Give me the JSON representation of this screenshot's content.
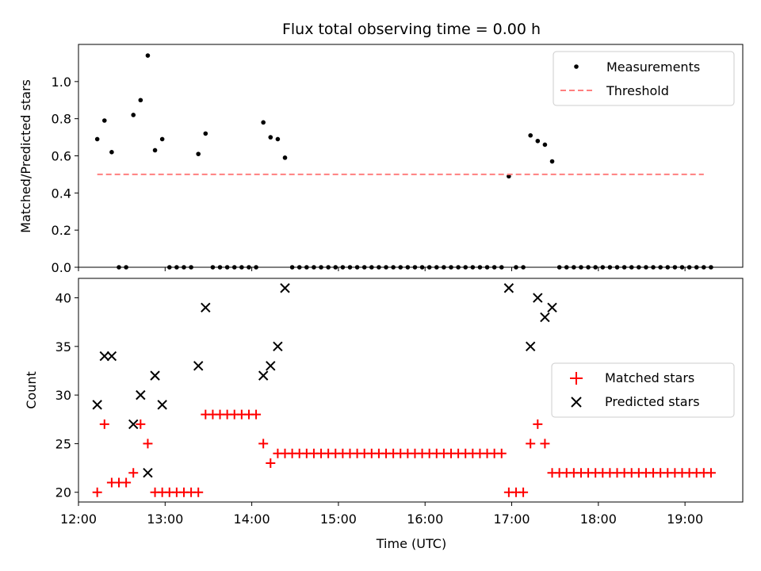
{
  "chart_data": [
    {
      "type": "scatter",
      "title": "Flux total observing time = 0.00 h",
      "xlabel": "",
      "ylabel": "Matched/Predicted stars",
      "xlim": [
        "12:00",
        "19:40"
      ],
      "ylim": [
        0,
        1.2
      ],
      "yticks": [
        0.0,
        0.2,
        0.4,
        0.6,
        0.8,
        1.0
      ],
      "xticks": [
        "12:00",
        "13:00",
        "14:00",
        "15:00",
        "16:00",
        "17:00",
        "18:00",
        "19:00"
      ],
      "grid": false,
      "legend": "top-right",
      "series": [
        {
          "name": "Measurements",
          "kind": "points",
          "color": "#000000",
          "x": [
            "12:13",
            "12:18",
            "12:23",
            "12:28",
            "12:33",
            "12:38",
            "12:43",
            "12:48",
            "12:53",
            "12:58",
            "13:03",
            "13:08",
            "13:13",
            "13:18",
            "13:23",
            "13:28",
            "13:33",
            "13:38",
            "13:43",
            "13:48",
            "13:53",
            "13:58",
            "14:03",
            "14:08",
            "14:13",
            "14:18",
            "14:23",
            "14:28",
            "14:33",
            "14:38",
            "14:43",
            "14:48",
            "14:53",
            "14:58",
            "15:03",
            "15:08",
            "15:13",
            "15:18",
            "15:23",
            "15:28",
            "15:33",
            "15:38",
            "15:43",
            "15:48",
            "15:53",
            "15:58",
            "16:03",
            "16:08",
            "16:13",
            "16:18",
            "16:23",
            "16:28",
            "16:33",
            "16:38",
            "16:43",
            "16:48",
            "16:53",
            "16:58",
            "17:03",
            "17:08",
            "17:13",
            "17:18",
            "17:23",
            "17:28",
            "17:33",
            "17:38",
            "17:43",
            "17:48",
            "17:53",
            "17:58",
            "18:03",
            "18:08",
            "18:13",
            "18:18",
            "18:23",
            "18:28",
            "18:33",
            "18:38",
            "18:43",
            "18:48",
            "18:53",
            "18:58",
            "19:03",
            "19:08",
            "19:13",
            "19:18"
          ],
          "y": [
            0.69,
            0.79,
            0.62,
            0.0,
            0.0,
            0.82,
            0.9,
            1.14,
            0.63,
            0.69,
            0.0,
            0.0,
            0.0,
            0.0,
            0.61,
            0.72,
            0.0,
            0.0,
            0.0,
            0.0,
            0.0,
            0.0,
            0.0,
            0.78,
            0.7,
            0.69,
            0.59,
            0.0,
            0.0,
            0.0,
            0.0,
            0.0,
            0.0,
            0.0,
            0.0,
            0.0,
            0.0,
            0.0,
            0.0,
            0.0,
            0.0,
            0.0,
            0.0,
            0.0,
            0.0,
            0.0,
            0.0,
            0.0,
            0.0,
            0.0,
            0.0,
            0.0,
            0.0,
            0.0,
            0.0,
            0.0,
            0.0,
            0.49,
            0.0,
            0.0,
            0.71,
            0.68,
            0.66,
            0.57,
            0.0,
            0.0,
            0.0,
            0.0,
            0.0,
            0.0,
            0.0,
            0.0,
            0.0,
            0.0,
            0.0,
            0.0,
            0.0,
            0.0,
            0.0,
            0.0,
            0.0,
            0.0,
            0.0,
            0.0,
            0.0,
            0.0
          ]
        },
        {
          "name": "Threshold",
          "kind": "dashed-line",
          "color": "#ff7f7f",
          "x": [
            "12:13",
            "19:13"
          ],
          "y": [
            0.5,
            0.5
          ]
        }
      ]
    },
    {
      "type": "scatter",
      "title": "",
      "xlabel": "Time (UTC)",
      "ylabel": "Count",
      "xlim": [
        "12:00",
        "19:40"
      ],
      "ylim": [
        19,
        42
      ],
      "yticks": [
        20,
        25,
        30,
        35,
        40
      ],
      "xticks": [
        "12:00",
        "13:00",
        "14:00",
        "15:00",
        "16:00",
        "17:00",
        "18:00",
        "19:00"
      ],
      "grid": false,
      "legend": "right",
      "series": [
        {
          "name": "Matched stars",
          "kind": "plus",
          "color": "#ff0000",
          "x": [
            "12:13",
            "12:18",
            "12:23",
            "12:28",
            "12:33",
            "12:38",
            "12:43",
            "12:48",
            "12:53",
            "12:58",
            "13:03",
            "13:08",
            "13:13",
            "13:18",
            "13:23",
            "13:28",
            "13:33",
            "13:38",
            "13:43",
            "13:48",
            "13:53",
            "13:58",
            "14:03",
            "14:08",
            "14:13",
            "14:18",
            "14:23",
            "14:28",
            "14:33",
            "14:38",
            "14:43",
            "14:48",
            "14:53",
            "14:58",
            "15:03",
            "15:08",
            "15:13",
            "15:18",
            "15:23",
            "15:28",
            "15:33",
            "15:38",
            "15:43",
            "15:48",
            "15:53",
            "15:58",
            "16:03",
            "16:08",
            "16:13",
            "16:18",
            "16:23",
            "16:28",
            "16:33",
            "16:38",
            "16:43",
            "16:48",
            "16:53",
            "16:58",
            "17:03",
            "17:08",
            "17:13",
            "17:18",
            "17:23",
            "17:28",
            "17:33",
            "17:38",
            "17:43",
            "17:48",
            "17:53",
            "17:58",
            "18:03",
            "18:08",
            "18:13",
            "18:18",
            "18:23",
            "18:28",
            "18:33",
            "18:38",
            "18:43",
            "18:48",
            "18:53",
            "18:58",
            "19:03",
            "19:08",
            "19:13",
            "19:18"
          ],
          "y": [
            20,
            27,
            21,
            21,
            21,
            22,
            27,
            25,
            20,
            20,
            20,
            20,
            20,
            20,
            20,
            28,
            28,
            28,
            28,
            28,
            28,
            28,
            28,
            25,
            23,
            24,
            24,
            24,
            24,
            24,
            24,
            24,
            24,
            24,
            24,
            24,
            24,
            24,
            24,
            24,
            24,
            24,
            24,
            24,
            24,
            24,
            24,
            24,
            24,
            24,
            24,
            24,
            24,
            24,
            24,
            24,
            24,
            20,
            20,
            20,
            25,
            27,
            25,
            22,
            22,
            22,
            22,
            22,
            22,
            22,
            22,
            22,
            22,
            22,
            22,
            22,
            22,
            22,
            22,
            22,
            22,
            22,
            22,
            22,
            22,
            22
          ]
        },
        {
          "name": "Predicted stars",
          "kind": "x",
          "color": "#000000",
          "x": [
            "12:13",
            "12:18",
            "12:23",
            "12:38",
            "12:43",
            "12:48",
            "12:53",
            "12:58",
            "13:23",
            "13:28",
            "14:08",
            "14:13",
            "14:18",
            "14:23",
            "16:58",
            "17:13",
            "17:18",
            "17:23",
            "17:28"
          ],
          "y": [
            29,
            34,
            34,
            27,
            30,
            22,
            32,
            29,
            33,
            39,
            32,
            33,
            35,
            41,
            41,
            35,
            40,
            38,
            39
          ]
        }
      ]
    }
  ]
}
